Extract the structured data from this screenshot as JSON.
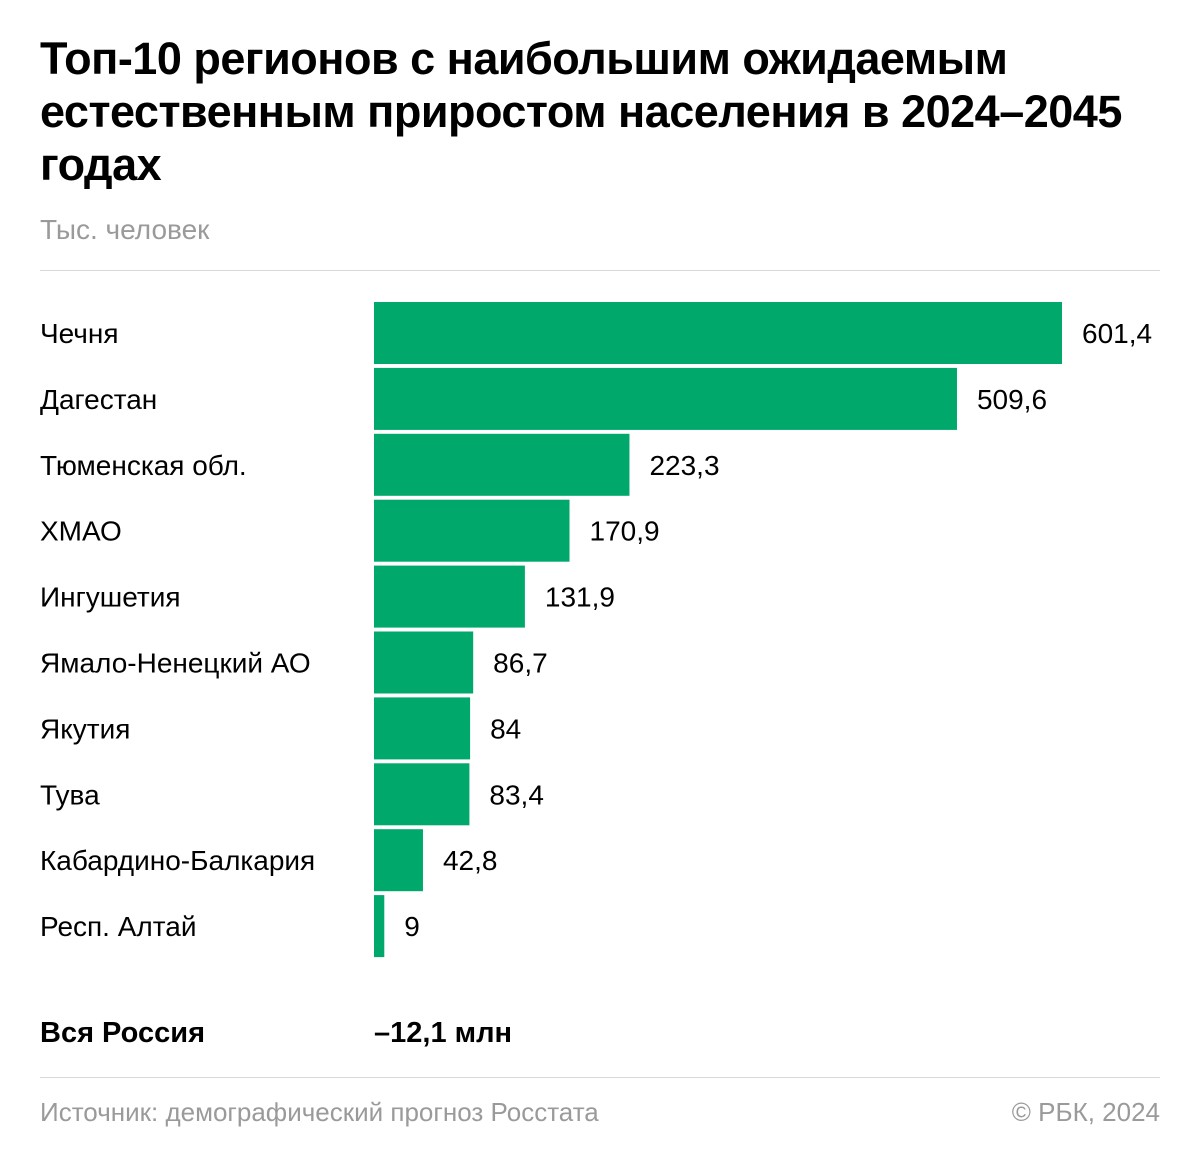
{
  "chart_data": {
    "type": "bar",
    "orientation": "horizontal",
    "title": "Топ-10 регионов с наибольшим ожидаемым естественным приростом населения в 2024–2045 годах",
    "subtitle": "Тыс. человек",
    "categories": [
      "Чечня",
      "Дагестан",
      "Тюменская обл.",
      "ХМАО",
      "Ингушетия",
      "Ямало-Ненецкий АО",
      "Якутия",
      "Тува",
      "Кабардино-Балкария",
      "Респ. Алтай"
    ],
    "values": [
      601.4,
      509.6,
      223.3,
      170.9,
      131.9,
      86.7,
      84,
      83.4,
      42.8,
      9
    ],
    "value_labels": [
      "601,4",
      "509,6",
      "223,3",
      "170,9",
      "131,9",
      "86,7",
      "84",
      "83,4",
      "42,8",
      "9"
    ],
    "bar_color": "#00a96b",
    "xlim": [
      0,
      601.4
    ],
    "grid": false
  },
  "total": {
    "label": "Вся Россия",
    "value": "–12,1 млн"
  },
  "footer": {
    "source": "Источник: демографический прогноз Росстата",
    "copyright": "© РБК, 2024"
  }
}
